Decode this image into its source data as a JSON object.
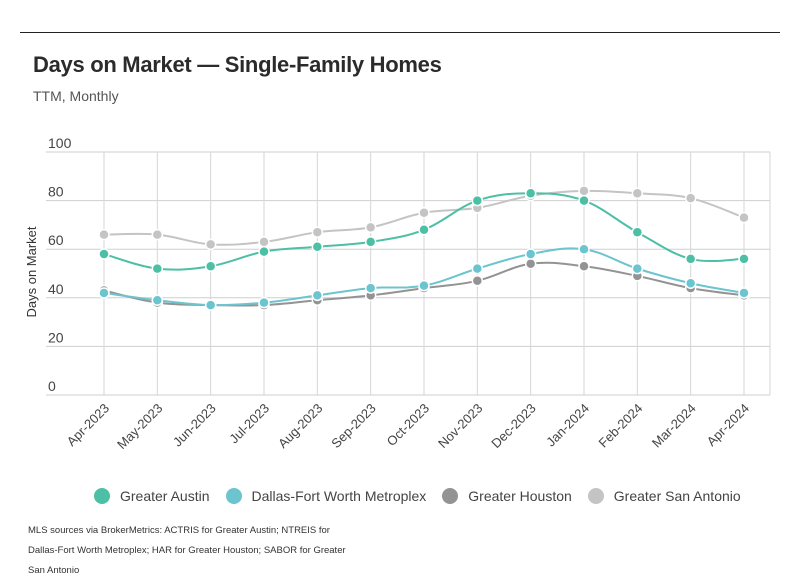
{
  "header": {
    "title": "Days on Market — Single-Family Homes",
    "subtitle": "TTM, Monthly"
  },
  "chart_data": {
    "type": "line",
    "categories": [
      "Apr-2023",
      "May-2023",
      "Jun-2023",
      "Jul-2023",
      "Aug-2023",
      "Sep-2023",
      "Oct-2023",
      "Nov-2023",
      "Dec-2023",
      "Jan-2024",
      "Feb-2024",
      "Mar-2024",
      "Apr-2024"
    ],
    "ylabel": "Days on Market",
    "xlabel": "",
    "ylim": [
      0,
      100
    ],
    "yticks": [
      "0",
      "20",
      "40",
      "60",
      "80",
      "100"
    ],
    "grid": true,
    "legend_position": "bottom",
    "series": [
      {
        "name": "Greater Austin",
        "color": "#4dbfa5",
        "values": [
          58,
          52,
          53,
          59,
          61,
          63,
          68,
          80,
          83,
          80,
          67,
          56,
          56
        ]
      },
      {
        "name": "Dallas-Fort Worth Metroplex",
        "color": "#6cc4cf",
        "values": [
          42,
          39,
          37,
          38,
          41,
          44,
          45,
          52,
          58,
          60,
          52,
          46,
          42
        ]
      },
      {
        "name": "Greater Houston",
        "color": "#939393",
        "values": [
          43,
          38,
          37,
          37,
          39,
          41,
          44,
          47,
          54,
          53,
          49,
          44,
          41
        ]
      },
      {
        "name": "Greater San Antonio",
        "color": "#c4c4c4",
        "values": [
          66,
          66,
          62,
          63,
          67,
          69,
          75,
          77,
          82,
          84,
          83,
          81,
          73
        ]
      }
    ]
  },
  "footer": {
    "source": "MLS sources via BrokerMetrics: ACTRIS for Greater Austin; NTREIS for Dallas-Fort Worth Metroplex; HAR for Greater Houston; SABOR for Greater San Antonio"
  }
}
